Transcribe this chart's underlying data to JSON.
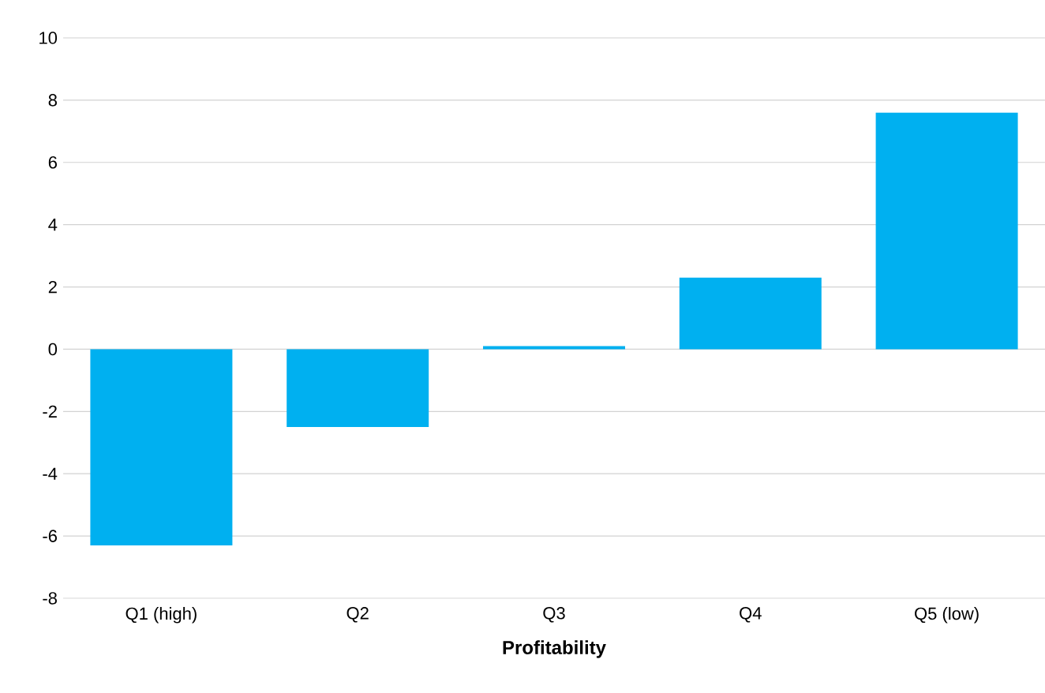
{
  "chart_data": {
    "type": "bar",
    "xlabel": "Profitability",
    "categories": [
      "Q1 (high)",
      "Q2",
      "Q3",
      "Q4",
      "Q5 (low)"
    ],
    "values": [
      -6.3,
      -2.5,
      0.1,
      2.3,
      7.6
    ],
    "color": "#00b0f0",
    "ylim": [
      -8,
      10
    ],
    "yticks": [
      -8,
      -6,
      -4,
      -2,
      0,
      2,
      4,
      6,
      8,
      10
    ],
    "grid": "y"
  }
}
